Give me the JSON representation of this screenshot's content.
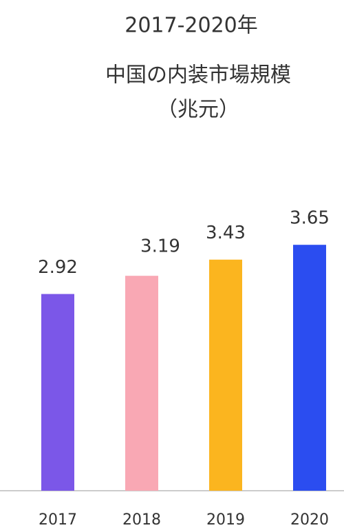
{
  "chart_data": {
    "type": "bar",
    "title": "2017-2020年",
    "subtitle": [
      "中国の内装市場規模",
      "（兆元）"
    ],
    "categories": [
      "2017",
      "2018",
      "2019",
      "2020"
    ],
    "values": [
      2.92,
      3.19,
      3.43,
      3.65
    ],
    "colors": [
      "#7b57e8",
      "#f9a8b4",
      "#fbb51f",
      "#2b4df0"
    ],
    "ylim": [
      0,
      4
    ]
  }
}
